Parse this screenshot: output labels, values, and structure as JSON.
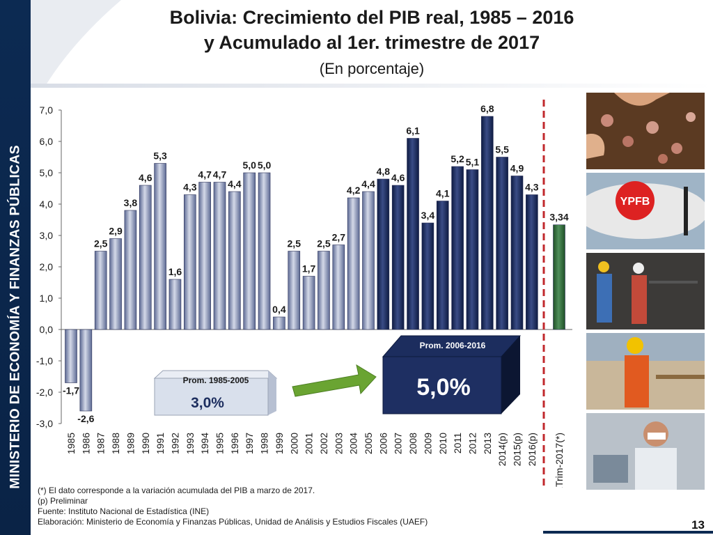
{
  "sidebar": {
    "text": "MINISTERIO DE ECONOMÍA Y FINANZAS PÚBLICAS"
  },
  "header": {
    "title_line1": "Bolivia: Crecimiento del PIB real, 1985 – 2016",
    "title_line2": "y Acumulado al 1er. trimestre de 2017",
    "subtitle": "(En porcentaje)"
  },
  "chart_data": {
    "type": "bar",
    "categories": [
      "1985",
      "1986",
      "1987",
      "1988",
      "1989",
      "1990",
      "1991",
      "1992",
      "1993",
      "1994",
      "1995",
      "1996",
      "1997",
      "1998",
      "1999",
      "2000",
      "2001",
      "2002",
      "2003",
      "2004",
      "2005",
      "2006",
      "2007",
      "2008",
      "2009",
      "2010",
      "2011",
      "2012",
      "2013",
      "2014(p)",
      "2015(p)",
      "2016(p)",
      "1Trim-2017(*)"
    ],
    "values": [
      -1.7,
      -2.6,
      2.5,
      2.9,
      3.8,
      4.6,
      5.3,
      1.6,
      4.3,
      4.7,
      4.7,
      4.4,
      5.0,
      5.0,
      0.4,
      2.5,
      1.7,
      2.5,
      2.7,
      4.2,
      4.4,
      4.8,
      4.6,
      6.1,
      3.4,
      4.1,
      5.2,
      5.1,
      6.8,
      5.5,
      4.9,
      4.3,
      3.34
    ],
    "value_labels": [
      "-1,7",
      "-2,6",
      "2,5",
      "2,9",
      "3,8",
      "4,6",
      "5,3",
      "1,6",
      "4,3",
      "4,7",
      "4,7",
      "4,4",
      "5,0",
      "5,0",
      "0,4",
      "2,5",
      "1,7",
      "2,5",
      "2,7",
      "4,2",
      "4,4",
      "4,8",
      "4,6",
      "6,1",
      "3,4",
      "4,1",
      "5,2",
      "5,1",
      "6,8",
      "5,5",
      "4,9",
      "4,3",
      "3,34"
    ],
    "ylim": [
      -3,
      7
    ],
    "yticks": [
      "-3,0",
      "-2,0",
      "-1,0",
      "0,0",
      "1,0",
      "2,0",
      "3,0",
      "4,0",
      "5,0",
      "6,0",
      "7,0"
    ],
    "colors": {
      "period1": "#8a94b6",
      "period2": "#1c2d5e",
      "quarter": "#2e6b38",
      "divider": "#c0282c"
    },
    "averages": [
      {
        "title": "Prom. 1985-2005",
        "value": "3,0%"
      },
      {
        "title": "Prom. 2006-2016",
        "value": "5,0%"
      }
    ]
  },
  "icons": [
    "photo-harvest-icon",
    "photo-gas-plant-icon",
    "photo-miners-icon",
    "photo-construction-icon",
    "photo-factory-icon"
  ],
  "footnotes": [
    "(*) El dato corresponde a la variación acumulada del PIB a marzo de 2017.",
    "(p) Preliminar",
    "Fuente: Instituto Nacional de Estadística (INE)",
    "Elaboración: Ministerio de Economía y Finanzas Públicas, Unidad de Análisis y Estudios Fiscales (UAEF)"
  ],
  "page_number": "13"
}
